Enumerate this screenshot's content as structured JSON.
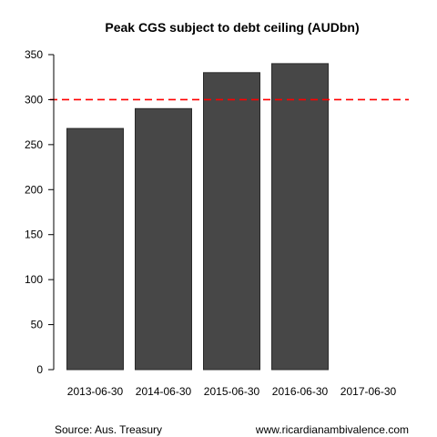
{
  "chart_data": {
    "type": "bar",
    "title": "Peak CGS subject to debt ceiling (AUDbn)",
    "categories": [
      "2013-06-30",
      "2014-06-30",
      "2015-06-30",
      "2016-06-30",
      "2017-06-30"
    ],
    "values": [
      268,
      290,
      330,
      340,
      null
    ],
    "xlabel": "",
    "ylabel": "",
    "ylim": [
      0,
      350
    ],
    "yticks": [
      0,
      50,
      100,
      150,
      200,
      250,
      300,
      350
    ],
    "grid": false,
    "reference_line": {
      "y": 300,
      "style": "dashed",
      "color": "#ff0000"
    },
    "bar_color": "#474747",
    "bar_edge_color": "#2a2a2a"
  },
  "captions": {
    "source": "Source: Aus. Treasury",
    "website": "www.ricardianambivalence.com"
  }
}
